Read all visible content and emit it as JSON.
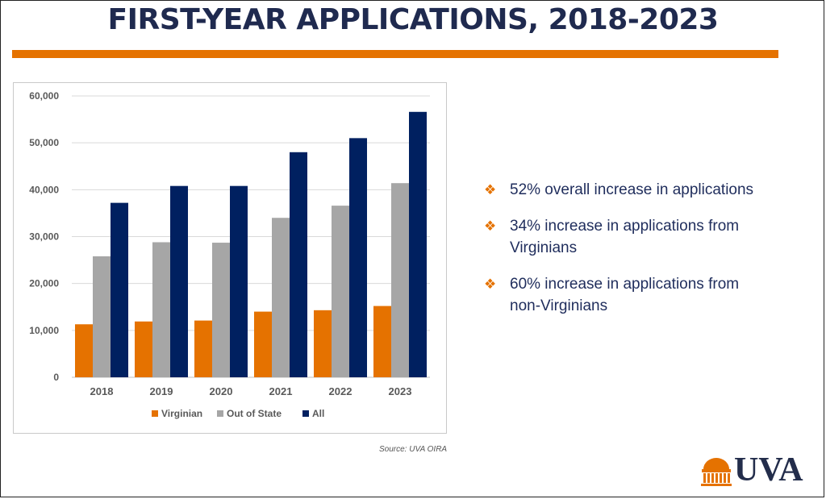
{
  "slide": {
    "title": "FIRST-YEAR APPLICATIONS, 2018-2023",
    "source": "Source:  UVA OIRA",
    "logo_text": "UVA"
  },
  "colors": {
    "accent": "#e57200",
    "navy": "#232d4b",
    "gray": "#a6a6a6",
    "title": "#1f2a4f",
    "text_navy": "#1f2d5c"
  },
  "bullets": {
    "icon": "diamond-quad-icon",
    "items": [
      {
        "lines": [
          "52% overall increase in applications"
        ]
      },
      {
        "lines": [
          "34% increase in applications from",
          "Virginians"
        ]
      },
      {
        "lines": [
          "60% increase in applications from",
          "non-Virginians"
        ]
      }
    ]
  },
  "chart_data": {
    "type": "bar",
    "categories": [
      "2018",
      "2019",
      "2020",
      "2021",
      "2022",
      "2023"
    ],
    "series": [
      {
        "name": "Virginian",
        "color": "#e57200",
        "values": [
          11300,
          11900,
          12100,
          14000,
          14300,
          15200
        ]
      },
      {
        "name": "Out of State",
        "color": "#a6a6a6",
        "values": [
          25800,
          28800,
          28700,
          34000,
          36600,
          41400
        ]
      },
      {
        "name": "All",
        "color": "#002060",
        "values": [
          37200,
          40800,
          40800,
          48000,
          51000,
          56600
        ]
      }
    ],
    "yticks": [
      "0",
      "10,000",
      "20,000",
      "30,000",
      "40,000",
      "50,000",
      "60,000"
    ],
    "ylim": [
      0,
      60000
    ],
    "grid": true,
    "legend": "bottom"
  }
}
